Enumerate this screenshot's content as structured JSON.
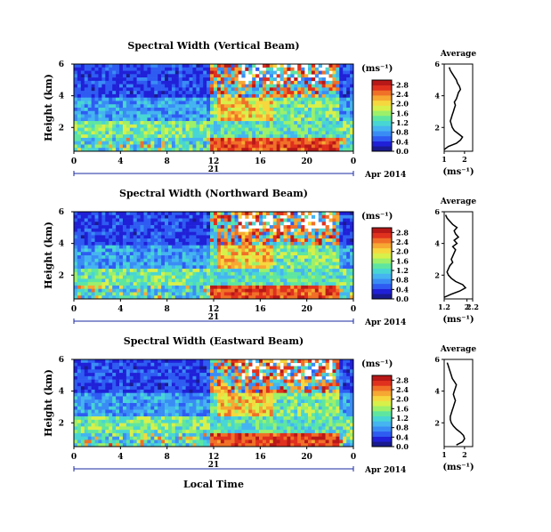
{
  "chart_data": {
    "type": "heatmap",
    "xlabel": "Local Time",
    "date_label": "Apr 2014",
    "day_label": "21",
    "x_ticks": [
      "0",
      "4",
      "8",
      "12",
      "16",
      "20",
      "0"
    ],
    "y_ticks": [
      "6",
      "4",
      "2"
    ],
    "ylabel": "Height (km)",
    "colorbar_unit": "(ms⁻¹)",
    "colorbar_ticks": [
      "0.0",
      "0.4",
      "0.8",
      "1.2",
      "1.6",
      "2.0",
      "2.4",
      "2.8"
    ],
    "colorbar_range": [
      0.0,
      3.0
    ],
    "avg_title": "Average",
    "avg_xlabel": "(ms⁻¹)",
    "avg_y_ticks": [
      "6",
      "4",
      "2"
    ],
    "panels": [
      {
        "title": "Spectral Width (Vertical Beam)",
        "avg_x_ticks": [
          "1",
          "2"
        ],
        "avg_xlim": [
          1.0,
          2.4
        ],
        "avg_profile": {
          "height_km": [
            0.6,
            0.8,
            1.0,
            1.2,
            1.4,
            1.6,
            1.8,
            2.0,
            2.2,
            2.4,
            2.6,
            2.8,
            3.0,
            3.2,
            3.4,
            3.6,
            3.8,
            4.0,
            4.2,
            4.4,
            4.6,
            4.8,
            5.0,
            5.2,
            5.4,
            5.6,
            5.8
          ],
          "width_ms": [
            1.0,
            1.2,
            1.6,
            1.8,
            1.9,
            1.7,
            1.5,
            1.4,
            1.35,
            1.3,
            1.35,
            1.4,
            1.45,
            1.5,
            1.55,
            1.5,
            1.6,
            1.65,
            1.7,
            1.8,
            1.75,
            1.65,
            1.6,
            1.5,
            1.4,
            1.3,
            1.25
          ]
        }
      },
      {
        "title": "Spectral Width (Northward Beam)",
        "avg_x_ticks": [
          "1.2",
          "2",
          "2.2"
        ],
        "avg_xlim": [
          1.2,
          2.2
        ],
        "avg_profile": {
          "height_km": [
            0.6,
            0.8,
            1.0,
            1.2,
            1.4,
            1.6,
            1.8,
            2.0,
            2.2,
            2.4,
            2.6,
            2.8,
            3.0,
            3.2,
            3.4,
            3.6,
            3.8,
            4.0,
            4.2,
            4.4,
            4.6,
            4.8,
            5.0,
            5.2,
            5.4,
            5.6,
            5.8
          ],
          "width_ms": [
            1.2,
            1.45,
            1.75,
            1.95,
            1.85,
            1.6,
            1.45,
            1.35,
            1.3,
            1.35,
            1.4,
            1.5,
            1.45,
            1.5,
            1.55,
            1.6,
            1.5,
            1.65,
            1.55,
            1.7,
            1.6,
            1.55,
            1.65,
            1.5,
            1.4,
            1.3,
            1.25
          ]
        }
      },
      {
        "title": "Spectral Width (Eastward Beam)",
        "avg_x_ticks": [
          "1",
          "2"
        ],
        "avg_xlim": [
          1.0,
          2.4
        ],
        "avg_profile": {
          "height_km": [
            0.6,
            0.8,
            1.0,
            1.2,
            1.4,
            1.6,
            1.8,
            2.0,
            2.2,
            2.4,
            2.6,
            2.8,
            3.0,
            3.2,
            3.4,
            3.6,
            3.8,
            4.0,
            4.2,
            4.4,
            4.6,
            4.8,
            5.0,
            5.2,
            5.4,
            5.6,
            5.8
          ],
          "width_ms": [
            1.6,
            1.9,
            2.0,
            1.95,
            1.8,
            1.6,
            1.45,
            1.35,
            1.3,
            1.3,
            1.35,
            1.4,
            1.45,
            1.5,
            1.55,
            1.5,
            1.45,
            1.5,
            1.55,
            1.6,
            1.5,
            1.4,
            1.35,
            1.3,
            1.25,
            1.2,
            1.15
          ]
        }
      }
    ]
  },
  "colors": {
    "colormap": [
      "#1a1a90",
      "#2020d8",
      "#2e5cf2",
      "#3a8cf5",
      "#45b4f0",
      "#48d6d4",
      "#5ee6a0",
      "#9cf06a",
      "#d8f04a",
      "#f6d83e",
      "#f6a832",
      "#f07028",
      "#e0301e",
      "#b81818"
    ],
    "axis": "#000000",
    "timeline": "#1a2aa0"
  }
}
